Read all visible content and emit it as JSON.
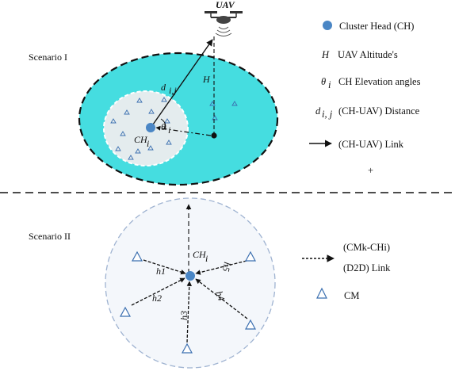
{
  "scenario_1": {
    "label": "Scenario I",
    "uav_label": "UAV",
    "ch_label": "CH",
    "ch_sub": "i",
    "theta": "θ",
    "theta_sub": "i",
    "distance": "d",
    "distance_sub": "i,j",
    "altitude": "H"
  },
  "scenario_2": {
    "label": "Scenario II",
    "ch_label": "CH",
    "ch_sub": "i",
    "links": [
      "h1",
      "h2",
      "h3",
      "h4",
      "h5"
    ]
  },
  "legend_1": {
    "cluster_head": "Cluster Head (CH)",
    "altitude_sym": "H",
    "altitude_text": "UAV  Altitude's",
    "theta_sym": "θ",
    "theta_sub": "i",
    "theta_text": "CH  Elevation angles",
    "distance_sym": "d",
    "distance_sub": "i, j",
    "distance_text": "(CH-UAV)  Distance",
    "link_text": "(CH-UAV)  Link"
  },
  "legend_2": {
    "d2d_line1": "(CMk-CHi)",
    "d2d_line2": "(D2D)  Link",
    "cm_text": "CM"
  },
  "colors": {
    "outer_zone": "#45dde0",
    "inner_zone": "#e4ecee",
    "ch_dot": "#4a86c5",
    "scenario2_fill": "#f4f7fb",
    "scenario2_border": "#9fb3d1",
    "triangle": "#3b6fb0"
  }
}
